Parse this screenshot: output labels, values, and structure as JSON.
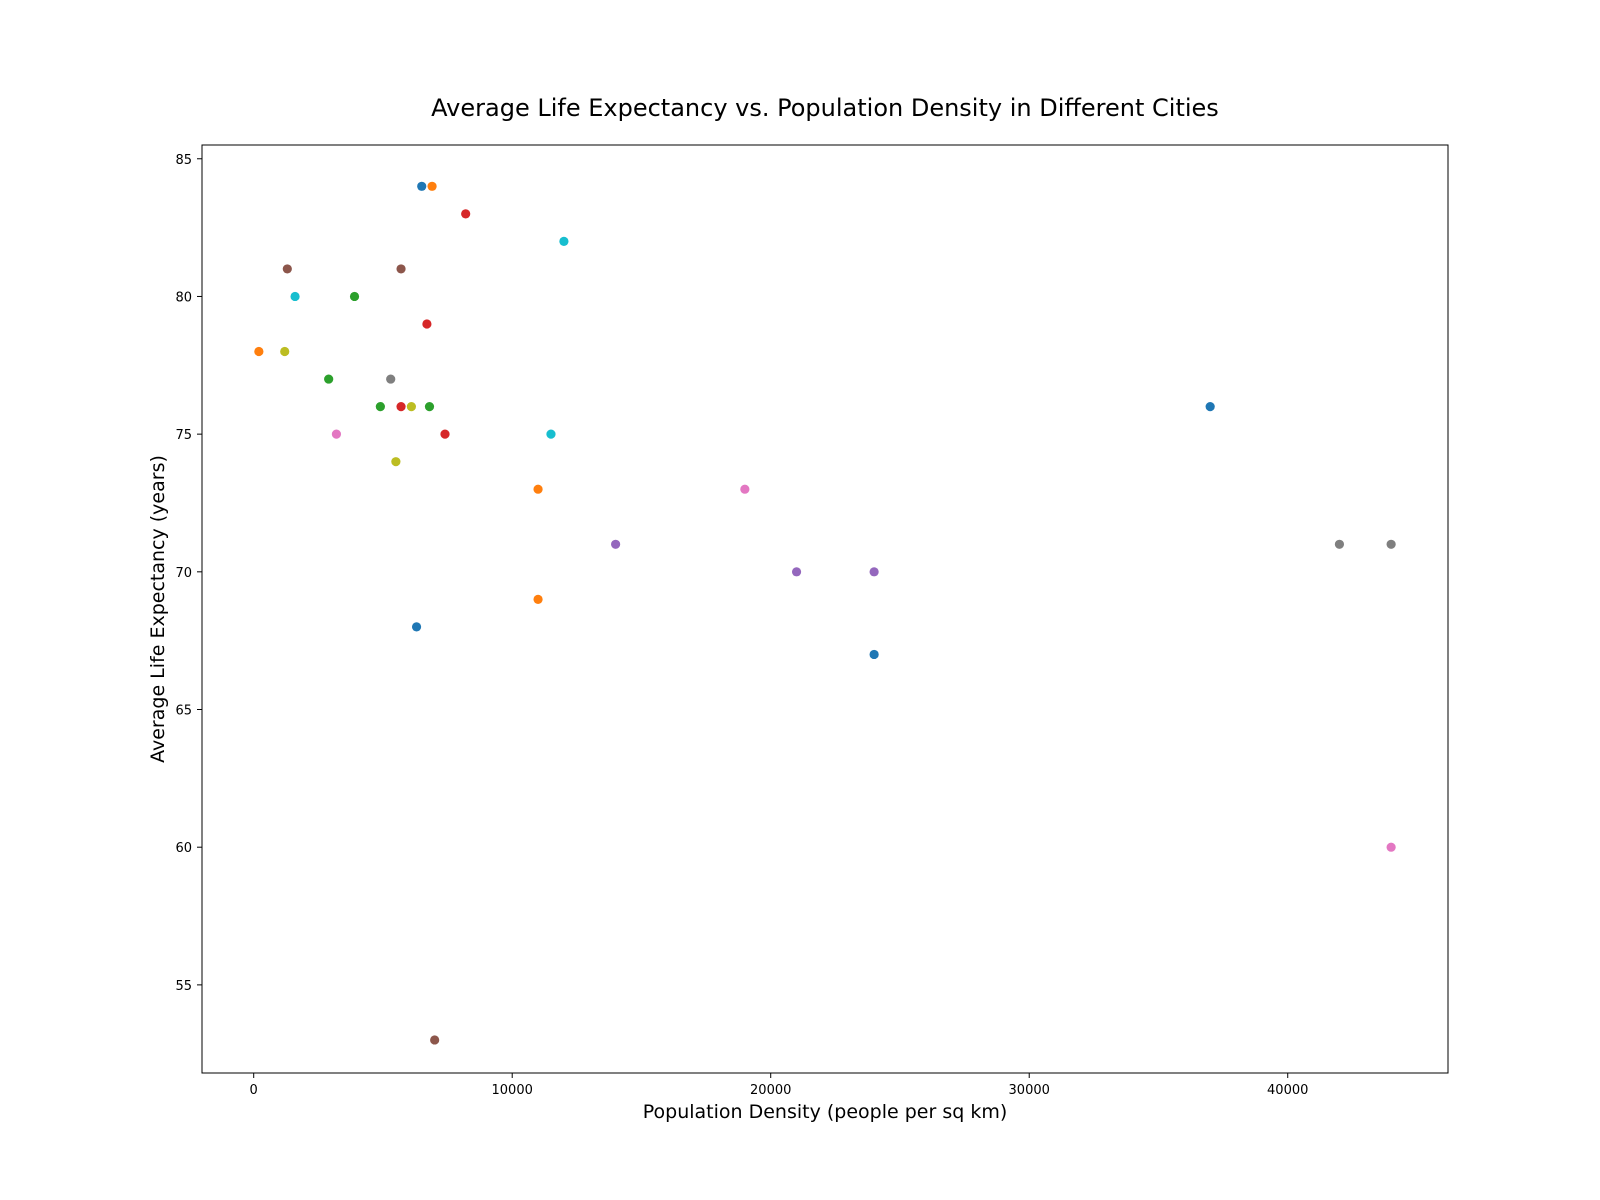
{
  "chart_data": {
    "type": "scatter",
    "title": "Average Life Expectancy vs. Population Density in Different Cities",
    "xlabel": "Population Density (people per sq km)",
    "ylabel": "Average Life Expectancy (years)",
    "xlim": [
      -2000,
      46200
    ],
    "ylim": [
      51.8,
      85.5
    ],
    "xticks": [
      0,
      10000,
      20000,
      30000,
      40000
    ],
    "yticks": [
      55,
      60,
      65,
      70,
      75,
      80,
      85
    ],
    "grid": false,
    "legend": "none",
    "points": [
      {
        "x": 6500,
        "y": 84,
        "color": "#1f77b4"
      },
      {
        "x": 6300,
        "y": 68,
        "color": "#1f77b4"
      },
      {
        "x": 24000,
        "y": 67,
        "color": "#1f77b4"
      },
      {
        "x": 37000,
        "y": 76,
        "color": "#1f77b4"
      },
      {
        "x": 6900,
        "y": 84,
        "color": "#ff7f0e"
      },
      {
        "x": 200,
        "y": 78,
        "color": "#ff7f0e"
      },
      {
        "x": 11000,
        "y": 73,
        "color": "#ff7f0e"
      },
      {
        "x": 11000,
        "y": 69,
        "color": "#ff7f0e"
      },
      {
        "x": 3900,
        "y": 80,
        "color": "#2ca02c"
      },
      {
        "x": 2900,
        "y": 77,
        "color": "#2ca02c"
      },
      {
        "x": 4900,
        "y": 76,
        "color": "#2ca02c"
      },
      {
        "x": 6800,
        "y": 76,
        "color": "#2ca02c"
      },
      {
        "x": 8200,
        "y": 83,
        "color": "#d62728"
      },
      {
        "x": 6700,
        "y": 79,
        "color": "#d62728"
      },
      {
        "x": 5700,
        "y": 76,
        "color": "#d62728"
      },
      {
        "x": 7400,
        "y": 75,
        "color": "#d62728"
      },
      {
        "x": 14000,
        "y": 71,
        "color": "#9467bd"
      },
      {
        "x": 21000,
        "y": 70,
        "color": "#9467bd"
      },
      {
        "x": 24000,
        "y": 70,
        "color": "#9467bd"
      },
      {
        "x": 1300,
        "y": 81,
        "color": "#8c564b"
      },
      {
        "x": 5700,
        "y": 81,
        "color": "#8c564b"
      },
      {
        "x": 7000,
        "y": 53,
        "color": "#8c564b"
      },
      {
        "x": 3200,
        "y": 75,
        "color": "#e377c2"
      },
      {
        "x": 19000,
        "y": 73,
        "color": "#e377c2"
      },
      {
        "x": 44000,
        "y": 60,
        "color": "#e377c2"
      },
      {
        "x": 5300,
        "y": 77,
        "color": "#7f7f7f"
      },
      {
        "x": 42000,
        "y": 71,
        "color": "#7f7f7f"
      },
      {
        "x": 44000,
        "y": 71,
        "color": "#7f7f7f"
      },
      {
        "x": 1200,
        "y": 78,
        "color": "#bcbd22"
      },
      {
        "x": 6100,
        "y": 76,
        "color": "#bcbd22"
      },
      {
        "x": 5500,
        "y": 74,
        "color": "#bcbd22"
      },
      {
        "x": 1600,
        "y": 80,
        "color": "#17becf"
      },
      {
        "x": 12000,
        "y": 82,
        "color": "#17becf"
      },
      {
        "x": 11500,
        "y": 75,
        "color": "#17becf"
      }
    ]
  }
}
